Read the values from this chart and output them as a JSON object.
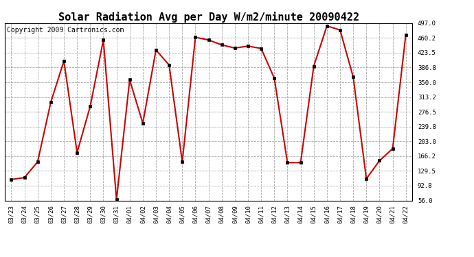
{
  "title": "Solar Radiation Avg per Day W/m2/minute 20090422",
  "copyright": "Copyright 2009 Cartronics.com",
  "labels": [
    "03/23",
    "03/24",
    "03/25",
    "03/26",
    "03/27",
    "03/28",
    "03/29",
    "03/30",
    "03/31",
    "04/01",
    "04/02",
    "04/03",
    "04/04",
    "04/05",
    "04/06",
    "04/07",
    "04/08",
    "04/09",
    "04/10",
    "04/11",
    "04/12",
    "04/13",
    "04/14",
    "04/15",
    "04/16",
    "04/17",
    "04/18",
    "04/19",
    "04/20",
    "04/21",
    "04/22"
  ],
  "values": [
    108,
    113,
    152,
    300,
    403,
    175,
    290,
    455,
    58,
    356,
    248,
    430,
    393,
    152,
    462,
    455,
    443,
    435,
    440,
    434,
    360,
    150,
    150,
    390,
    490,
    480,
    363,
    110,
    155,
    185,
    468
  ],
  "line_color": "#cc0000",
  "marker_color": "#000000",
  "marker_size": 3,
  "background_color": "#ffffff",
  "grid_color": "#aaaaaa",
  "ylim_min": 56.0,
  "ylim_max": 497.0,
  "yticks": [
    56.0,
    92.8,
    129.5,
    166.2,
    203.0,
    239.8,
    276.5,
    313.2,
    350.0,
    386.8,
    423.5,
    460.2,
    497.0
  ],
  "title_fontsize": 11,
  "copyright_fontsize": 7,
  "tick_fontsize": 6.5
}
